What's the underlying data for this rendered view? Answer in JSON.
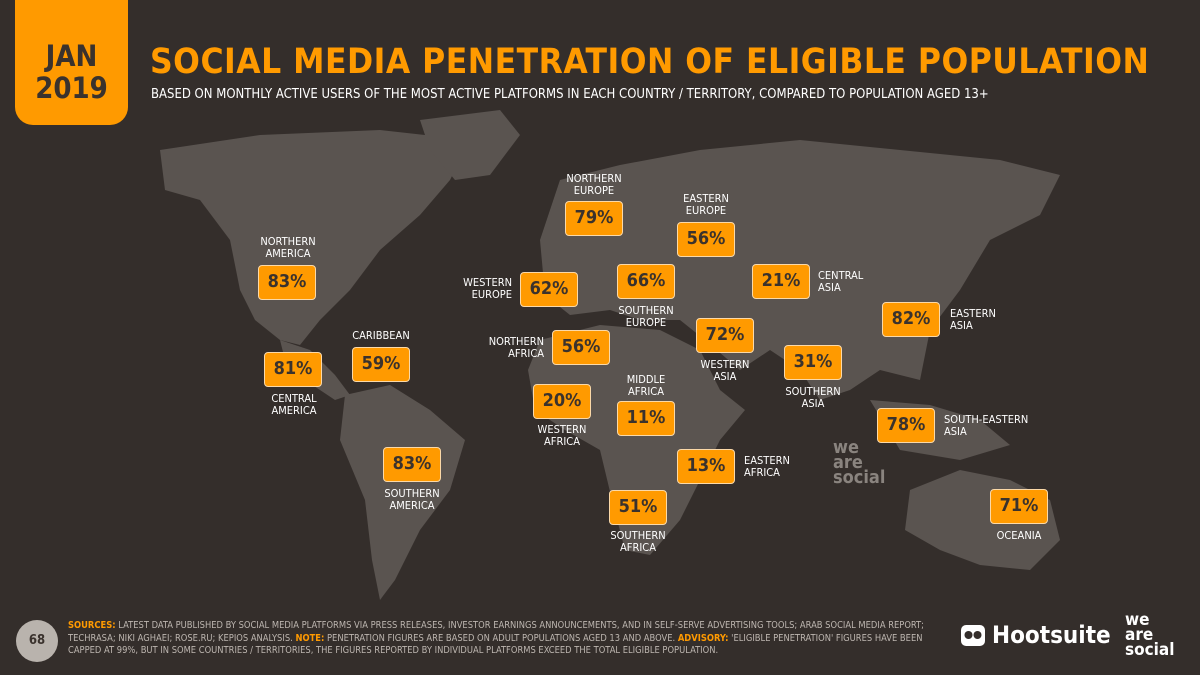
{
  "header": {
    "date_line1": "JAN",
    "date_line2": "2019",
    "title": "SOCIAL MEDIA PENETRATION OF ELIGIBLE POPULATION",
    "subtitle": "BASED ON MONTHLY ACTIVE USERS OF THE MOST ACTIVE PLATFORMS IN EACH COUNTRY / TERRITORY, COMPARED TO POPULATION AGED 13+"
  },
  "colors": {
    "accent": "#ff9a00",
    "background": "#342e2b",
    "land": "#5a5450"
  },
  "regions": [
    {
      "name": "NORTHERN AMERICA",
      "value": "83%"
    },
    {
      "name": "CENTRAL AMERICA",
      "value": "81%"
    },
    {
      "name": "CARIBBEAN",
      "value": "59%"
    },
    {
      "name": "SOUTHERN AMERICA",
      "value": "83%"
    },
    {
      "name": "NORTHERN EUROPE",
      "value": "79%"
    },
    {
      "name": "WESTERN EUROPE",
      "value": "62%"
    },
    {
      "name": "SOUTHERN EUROPE",
      "value": "66%"
    },
    {
      "name": "EASTERN EUROPE",
      "value": "56%"
    },
    {
      "name": "NORTHERN AFRICA",
      "value": "56%"
    },
    {
      "name": "WESTERN AFRICA",
      "value": "20%"
    },
    {
      "name": "MIDDLE AFRICA",
      "value": "11%"
    },
    {
      "name": "EASTERN AFRICA",
      "value": "13%"
    },
    {
      "name": "SOUTHERN AFRICA",
      "value": "51%"
    },
    {
      "name": "WESTERN ASIA",
      "value": "72%"
    },
    {
      "name": "CENTRAL ASIA",
      "value": "21%"
    },
    {
      "name": "SOUTHERN ASIA",
      "value": "31%"
    },
    {
      "name": "EASTERN ASIA",
      "value": "82%"
    },
    {
      "name": "SOUTH-EASTERN ASIA",
      "value": "78%"
    },
    {
      "name": "OCEANIA",
      "value": "71%"
    }
  ],
  "footer": {
    "page_number": "68",
    "sources_label": "SOURCES:",
    "sources_text": " LATEST DATA PUBLISHED BY SOCIAL MEDIA PLATFORMS VIA PRESS RELEASES, INVESTOR EARNINGS ANNOUNCEMENTS, AND IN SELF-SERVE ADVERTISING TOOLS; ARAB SOCIAL MEDIA REPORT; TECHRASA; NIKI AGHAEI; ROSE.RU; KEPIOS ANALYSIS. ",
    "note_label": "NOTE:",
    "note_text": " PENETRATION FIGURES ARE BASED ON ADULT POPULATIONS AGED 13 AND ABOVE. ",
    "advisory_label": "ADVISORY:",
    "advisory_text": " 'ELIGIBLE PENETRATION' FIGURES HAVE BEEN CAPPED AT 99%, BUT IN SOME COUNTRIES / TERRITORIES, THE FIGURES REPORTED BY INDIVIDUAL PLATFORMS EXCEED THE TOTAL ELIGIBLE POPULATION."
  },
  "logos": {
    "hootsuite": "Hootsuite",
    "we_are_social": "we are social"
  }
}
